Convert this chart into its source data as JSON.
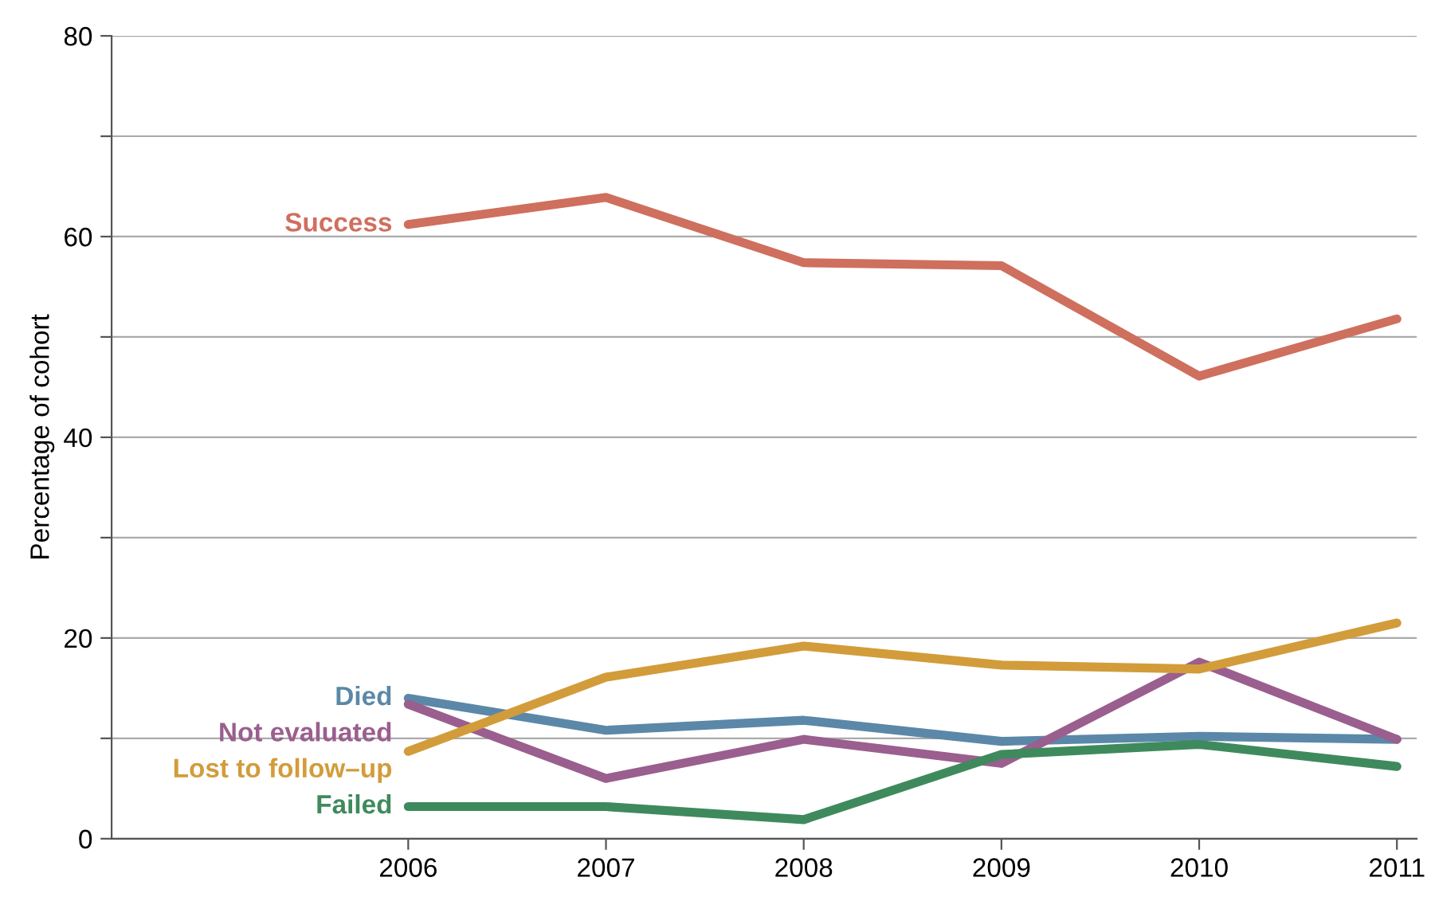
{
  "chart_data": {
    "type": "line",
    "ylabel": "Percentage of cohort",
    "x": [
      2006,
      2007,
      2008,
      2009,
      2010,
      2011
    ],
    "xlim": [
      2004.5,
      2011.1
    ],
    "xticks": [
      2006,
      2007,
      2008,
      2009,
      2010,
      2011
    ],
    "ylim": [
      0,
      80
    ],
    "yticks": [
      0,
      {
        "value": 10,
        "label": null
      },
      20,
      {
        "value": 30,
        "label": null
      },
      40,
      {
        "value": 50,
        "label": null
      },
      60,
      {
        "value": 70,
        "label": null
      },
      80
    ],
    "grid": "y",
    "legend": false,
    "marker": "none",
    "line_style": "solid",
    "series": [
      {
        "name": "Success",
        "color": "#cf6f5e",
        "values": [
          61.2,
          63.9,
          57.4,
          57.1,
          46.1,
          51.8
        ]
      },
      {
        "name": "Died",
        "color": "#5b88a8",
        "values": [
          14.0,
          10.8,
          11.8,
          9.7,
          10.2,
          9.9
        ]
      },
      {
        "name": "Not evaluated",
        "color": "#9a5f8e",
        "values": [
          13.4,
          6.0,
          9.9,
          7.5,
          17.6,
          9.9
        ]
      },
      {
        "name": "Lost to follow–up",
        "color": "#d29c3a",
        "values": [
          8.7,
          16.1,
          19.2,
          17.3,
          16.9,
          21.5
        ]
      },
      {
        "name": "Failed",
        "color": "#3f8a5d",
        "values": [
          3.2,
          3.2,
          1.9,
          8.4,
          9.4,
          7.2
        ]
      }
    ]
  }
}
